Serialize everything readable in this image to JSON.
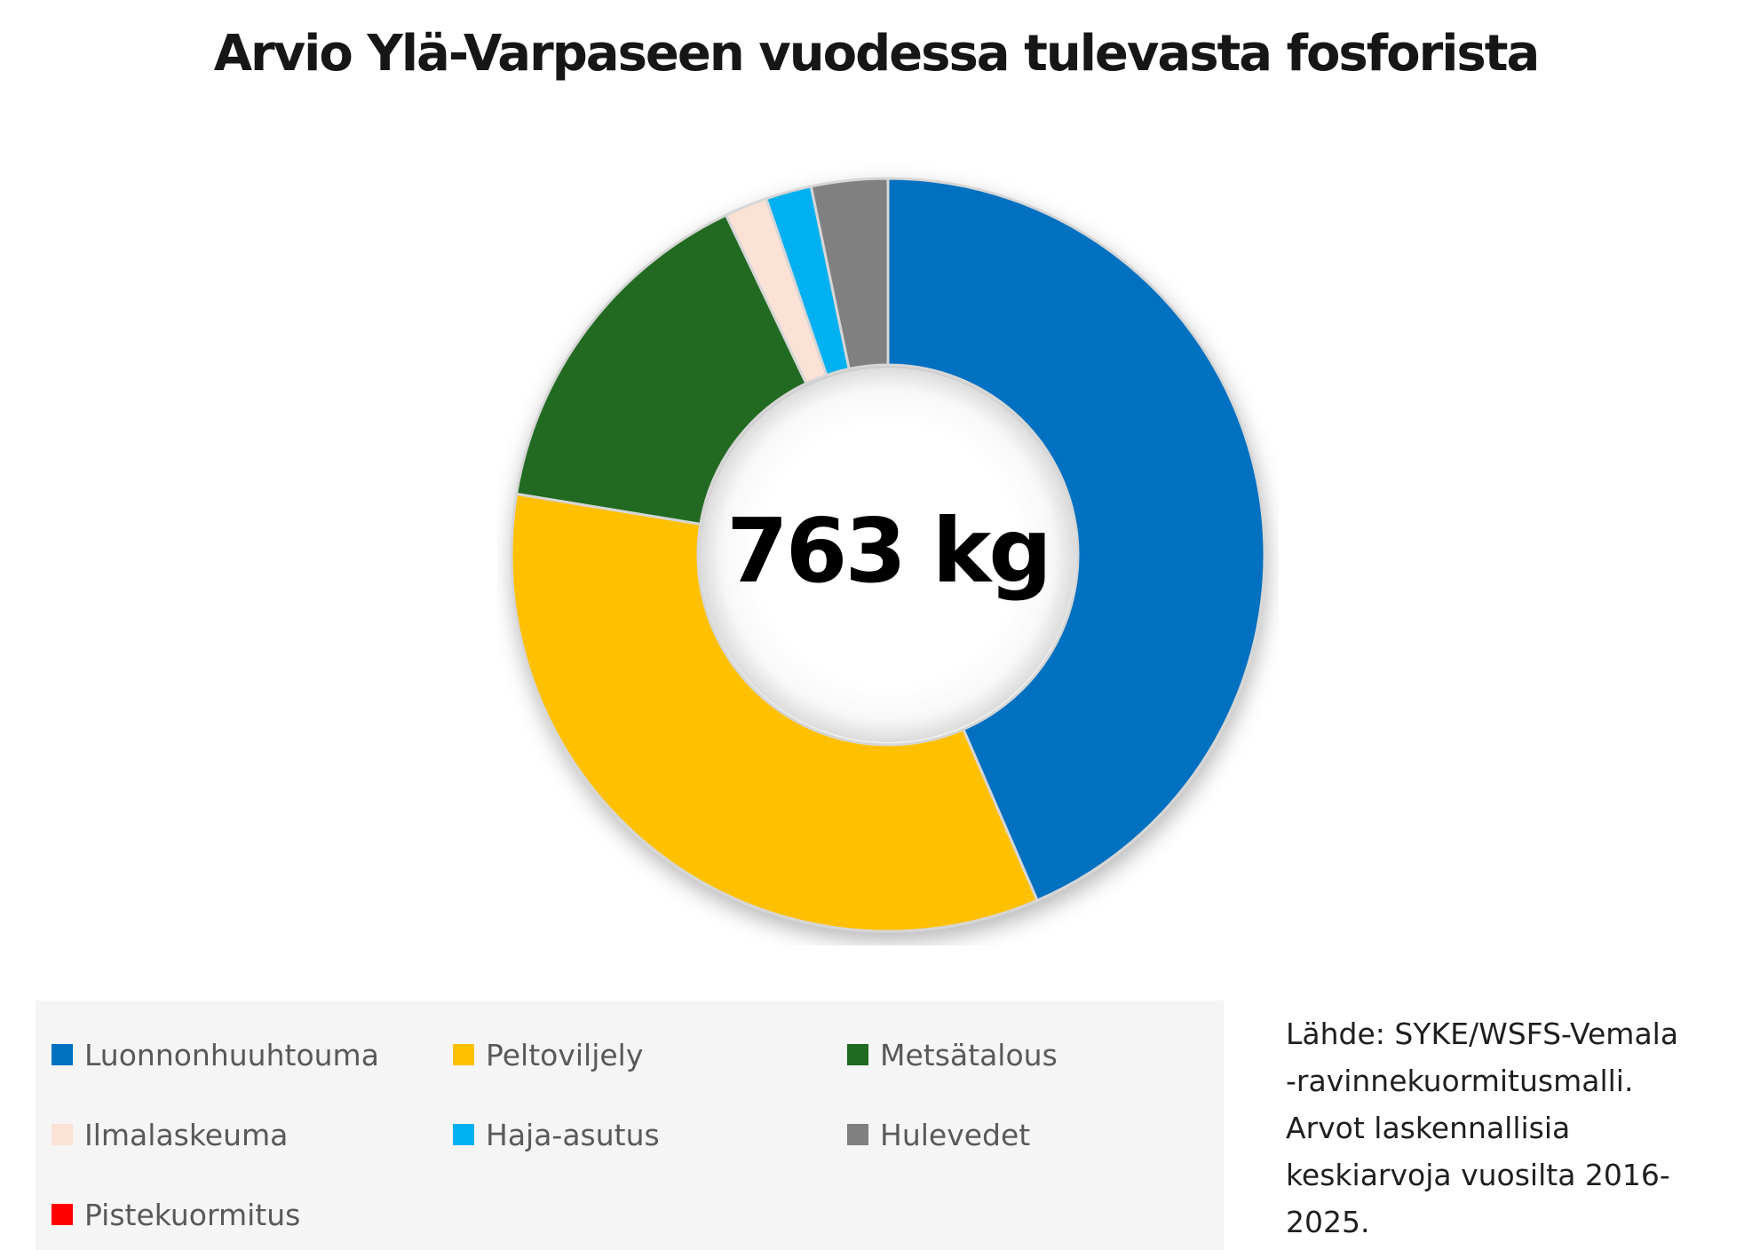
{
  "page": {
    "background": "#ffffff"
  },
  "title": "Arvio Ylä-Varpaseen vuodessa tulevasta fosforista",
  "chart_data": {
    "type": "pie",
    "subtype": "donut",
    "title": "Arvio Ylä-Varpaseen vuodessa tulevasta fosforista",
    "center_label": "763 kg",
    "total": 763,
    "unit": "kg",
    "hole_ratio": 0.5,
    "start_angle_deg": 0,
    "direction": "clockwise",
    "legend_position": "bottom",
    "categories": [
      "Luonnonhuuhtouma",
      "Peltoviljely",
      "Metsätalous",
      "Ilmalaskeuma",
      "Haja-asutus",
      "Hulevedet",
      "Pistekuormitus"
    ],
    "values": [
      332,
      260,
      117,
      14,
      15,
      25,
      0
    ],
    "percentages_est": [
      43.5,
      34.1,
      15.3,
      1.8,
      2.0,
      3.3,
      0.0
    ],
    "colors": [
      "#0070C0",
      "#FFC000",
      "#206A21",
      "#FBE2D5",
      "#00B0F0",
      "#808080",
      "#FF0000"
    ],
    "slice_border_color": "#D6D6D6"
  },
  "legend": {
    "background": "#f5f5f5",
    "items": [
      {
        "label": "Luonnonhuuhtouma",
        "color": "#0070C0"
      },
      {
        "label": "Peltoviljely",
        "color": "#FFC000"
      },
      {
        "label": "Metsätalous",
        "color": "#206A21"
      },
      {
        "label": "Ilmalaskeuma",
        "color": "#FBE2D5"
      },
      {
        "label": "Haja-asutus",
        "color": "#00B0F0"
      },
      {
        "label": "Hulevedet",
        "color": "#808080"
      },
      {
        "label": "Pistekuormitus",
        "color": "#FF0000"
      }
    ]
  },
  "source": {
    "text": "Lähde: SYKE/WSFS-Vemala -ravinnekuormitusmalli. Arvot laskennallisia keskiarvoja vuosilta 2016-2025.",
    "lines": [
      "Lähde: SYKE/WSFS-Vemala",
      "-ravinnekuormitusmalli.",
      "Arvot laskennallisia",
      "keskiarvoja vuosilta 2016-",
      "2025."
    ]
  }
}
